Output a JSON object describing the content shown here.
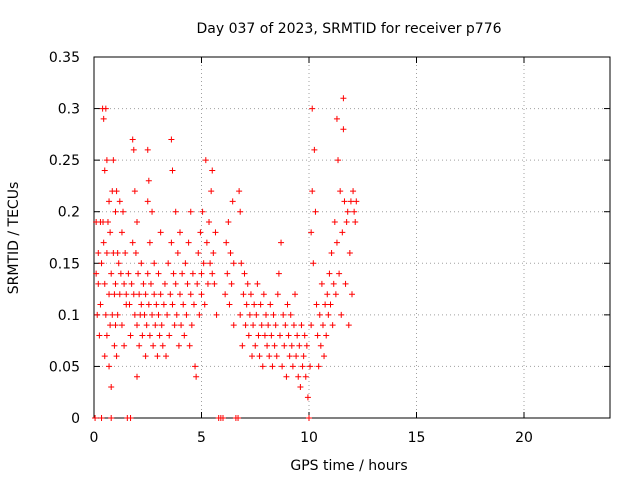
{
  "chart_data": {
    "type": "scatter",
    "title": "Day 037 of 2023, SRMTID for receiver p776",
    "xlabel": "GPS time / hours",
    "ylabel": "SRMTID / TECUs",
    "xlim": [
      0,
      24
    ],
    "ylim": [
      0,
      0.35
    ],
    "xticks": [
      0,
      5,
      10,
      15,
      20
    ],
    "xtick_labels": [
      "0",
      "5",
      "10",
      "15",
      "20"
    ],
    "yticks": [
      0,
      0.05,
      0.1,
      0.15,
      0.2,
      0.25,
      0.3,
      0.35
    ],
    "ytick_labels": [
      "0",
      "0.05",
      "0.1",
      "0.15",
      "0.2",
      "0.25",
      "0.3",
      "0.35"
    ],
    "grid": true,
    "marker": "+",
    "color": "#ff0000",
    "series": [
      {
        "name": "SRMTID",
        "points": [
          [
            0.05,
            0.0
          ],
          [
            0.1,
            0.19
          ],
          [
            0.1,
            0.14
          ],
          [
            0.15,
            0.1
          ],
          [
            0.2,
            0.16
          ],
          [
            0.2,
            0.13
          ],
          [
            0.25,
            0.08
          ],
          [
            0.3,
            0.19
          ],
          [
            0.3,
            0.11
          ],
          [
            0.35,
            0.15
          ],
          [
            0.35,
            0.0
          ],
          [
            0.4,
            0.3
          ],
          [
            0.42,
            0.19
          ],
          [
            0.45,
            0.29
          ],
          [
            0.45,
            0.17
          ],
          [
            0.5,
            0.06
          ],
          [
            0.5,
            0.24
          ],
          [
            0.5,
            0.13
          ],
          [
            0.55,
            0.3
          ],
          [
            0.55,
            0.1
          ],
          [
            0.6,
            0.25
          ],
          [
            0.6,
            0.16
          ],
          [
            0.6,
            0.08
          ],
          [
            0.65,
            0.19
          ],
          [
            0.7,
            0.21
          ],
          [
            0.7,
            0.12
          ],
          [
            0.7,
            0.05
          ],
          [
            0.75,
            0.18
          ],
          [
            0.75,
            0.09
          ],
          [
            0.8,
            0.03
          ],
          [
            0.8,
            0.14
          ],
          [
            0.8,
            0.0
          ],
          [
            0.85,
            0.22
          ],
          [
            0.85,
            0.1
          ],
          [
            0.9,
            0.25
          ],
          [
            0.9,
            0.16
          ],
          [
            0.95,
            0.12
          ],
          [
            0.95,
            0.07
          ],
          [
            1.0,
            0.2
          ],
          [
            1.0,
            0.13
          ],
          [
            1.0,
            0.09
          ],
          [
            1.05,
            0.22
          ],
          [
            1.05,
            0.06
          ],
          [
            1.1,
            0.16
          ],
          [
            1.1,
            0.1
          ],
          [
            1.15,
            0.15
          ],
          [
            1.2,
            0.21
          ],
          [
            1.2,
            0.12
          ],
          [
            1.25,
            0.14
          ],
          [
            1.3,
            0.18
          ],
          [
            1.3,
            0.09
          ],
          [
            1.35,
            0.2
          ],
          [
            1.4,
            0.13
          ],
          [
            1.4,
            0.07
          ],
          [
            1.45,
            0.16
          ],
          [
            1.5,
            0.11
          ],
          [
            1.5,
            0.12
          ],
          [
            1.55,
            0.0
          ],
          [
            1.6,
            0.14
          ],
          [
            1.65,
            0.11
          ],
          [
            1.7,
            0.08
          ],
          [
            1.7,
            0.0
          ],
          [
            1.75,
            0.13
          ],
          [
            1.8,
            0.27
          ],
          [
            1.8,
            0.17
          ],
          [
            1.85,
            0.26
          ],
          [
            1.85,
            0.12
          ],
          [
            1.9,
            0.22
          ],
          [
            1.9,
            0.1
          ],
          [
            1.95,
            0.16
          ],
          [
            2.0,
            0.19
          ],
          [
            2.0,
            0.09
          ],
          [
            2.0,
            0.04
          ],
          [
            2.05,
            0.14
          ],
          [
            2.1,
            0.12
          ],
          [
            2.1,
            0.07
          ],
          [
            2.15,
            0.1
          ],
          [
            2.2,
            0.15
          ],
          [
            2.2,
            0.11
          ],
          [
            2.25,
            0.08
          ],
          [
            2.3,
            0.13
          ],
          [
            2.35,
            0.1
          ],
          [
            2.4,
            0.06
          ],
          [
            2.4,
            0.12
          ],
          [
            2.45,
            0.09
          ],
          [
            2.5,
            0.26
          ],
          [
            2.5,
            0.21
          ],
          [
            2.5,
            0.14
          ],
          [
            2.55,
            0.23
          ],
          [
            2.55,
            0.11
          ],
          [
            2.6,
            0.17
          ],
          [
            2.6,
            0.08
          ],
          [
            2.65,
            0.13
          ],
          [
            2.7,
            0.2
          ],
          [
            2.7,
            0.1
          ],
          [
            2.75,
            0.07
          ],
          [
            2.8,
            0.15
          ],
          [
            2.8,
            0.12
          ],
          [
            2.85,
            0.09
          ],
          [
            2.9,
            0.11
          ],
          [
            2.95,
            0.06
          ],
          [
            3.0,
            0.14
          ],
          [
            3.0,
            0.1
          ],
          [
            3.05,
            0.08
          ],
          [
            3.1,
            0.18
          ],
          [
            3.1,
            0.12
          ],
          [
            3.15,
            0.09
          ],
          [
            3.2,
            0.07
          ],
          [
            3.25,
            0.11
          ],
          [
            3.3,
            0.13
          ],
          [
            3.35,
            0.06
          ],
          [
            3.4,
            0.1
          ],
          [
            3.45,
            0.15
          ],
          [
            3.5,
            0.08
          ],
          [
            3.55,
            0.12
          ],
          [
            3.6,
            0.27
          ],
          [
            3.6,
            0.17
          ],
          [
            3.65,
            0.24
          ],
          [
            3.65,
            0.11
          ],
          [
            3.7,
            0.14
          ],
          [
            3.75,
            0.09
          ],
          [
            3.8,
            0.2
          ],
          [
            3.8,
            0.13
          ],
          [
            3.85,
            0.1
          ],
          [
            3.9,
            0.16
          ],
          [
            3.95,
            0.07
          ],
          [
            4.0,
            0.12
          ],
          [
            4.0,
            0.18
          ],
          [
            4.05,
            0.09
          ],
          [
            4.1,
            0.14
          ],
          [
            4.15,
            0.11
          ],
          [
            4.2,
            0.08
          ],
          [
            4.25,
            0.15
          ],
          [
            4.3,
            0.1
          ],
          [
            4.35,
            0.13
          ],
          [
            4.4,
            0.17
          ],
          [
            4.45,
            0.07
          ],
          [
            4.5,
            0.12
          ],
          [
            4.5,
            0.2
          ],
          [
            4.55,
            0.09
          ],
          [
            4.6,
            0.14
          ],
          [
            4.65,
            0.11
          ],
          [
            4.7,
            0.05
          ],
          [
            4.75,
            0.04
          ],
          [
            4.8,
            0.13
          ],
          [
            4.85,
            0.16
          ],
          [
            4.9,
            0.1
          ],
          [
            4.95,
            0.18
          ],
          [
            5.0,
            0.14
          ],
          [
            5.0,
            0.12
          ],
          [
            5.05,
            0.2
          ],
          [
            5.1,
            0.15
          ],
          [
            5.15,
            0.11
          ],
          [
            5.2,
            0.25
          ],
          [
            5.25,
            0.17
          ],
          [
            5.3,
            0.13
          ],
          [
            5.35,
            0.19
          ],
          [
            5.4,
            0.15
          ],
          [
            5.45,
            0.22
          ],
          [
            5.5,
            0.24
          ],
          [
            5.5,
            0.14
          ],
          [
            5.55,
            0.16
          ],
          [
            5.6,
            0.13
          ],
          [
            5.65,
            0.18
          ],
          [
            5.7,
            0.1
          ],
          [
            5.8,
            0.0
          ],
          [
            5.9,
            0.0
          ],
          [
            6.0,
            0.0
          ],
          [
            6.1,
            0.12
          ],
          [
            6.15,
            0.17
          ],
          [
            6.2,
            0.14
          ],
          [
            6.25,
            0.19
          ],
          [
            6.3,
            0.11
          ],
          [
            6.35,
            0.16
          ],
          [
            6.4,
            0.13
          ],
          [
            6.45,
            0.21
          ],
          [
            6.5,
            0.09
          ],
          [
            6.5,
            0.15
          ],
          [
            6.6,
            0.0
          ],
          [
            6.7,
            0.0
          ],
          [
            6.75,
            0.22
          ],
          [
            6.8,
            0.2
          ],
          [
            6.8,
            0.1
          ],
          [
            6.85,
            0.15
          ],
          [
            6.9,
            0.07
          ],
          [
            6.95,
            0.12
          ],
          [
            7.0,
            0.14
          ],
          [
            7.05,
            0.09
          ],
          [
            7.1,
            0.11
          ],
          [
            7.15,
            0.13
          ],
          [
            7.2,
            0.08
          ],
          [
            7.25,
            0.1
          ],
          [
            7.3,
            0.12
          ],
          [
            7.35,
            0.06
          ],
          [
            7.4,
            0.09
          ],
          [
            7.45,
            0.11
          ],
          [
            7.5,
            0.07
          ],
          [
            7.55,
            0.1
          ],
          [
            7.6,
            0.13
          ],
          [
            7.65,
            0.08
          ],
          [
            7.7,
            0.06
          ],
          [
            7.75,
            0.11
          ],
          [
            7.8,
            0.09
          ],
          [
            7.85,
            0.05
          ],
          [
            7.9,
            0.12
          ],
          [
            7.95,
            0.08
          ],
          [
            8.0,
            0.1
          ],
          [
            8.05,
            0.07
          ],
          [
            8.1,
            0.09
          ],
          [
            8.15,
            0.06
          ],
          [
            8.2,
            0.11
          ],
          [
            8.25,
            0.08
          ],
          [
            8.3,
            0.05
          ],
          [
            8.35,
            0.1
          ],
          [
            8.4,
            0.07
          ],
          [
            8.45,
            0.09
          ],
          [
            8.5,
            0.06
          ],
          [
            8.55,
            0.12
          ],
          [
            8.6,
            0.14
          ],
          [
            8.65,
            0.08
          ],
          [
            8.7,
            0.17
          ],
          [
            8.75,
            0.05
          ],
          [
            8.8,
            0.1
          ],
          [
            8.85,
            0.07
          ],
          [
            8.9,
            0.09
          ],
          [
            8.95,
            0.04
          ],
          [
            9.0,
            0.11
          ],
          [
            9.05,
            0.08
          ],
          [
            9.1,
            0.06
          ],
          [
            9.15,
            0.1
          ],
          [
            9.2,
            0.07
          ],
          [
            9.25,
            0.05
          ],
          [
            9.3,
            0.09
          ],
          [
            9.35,
            0.12
          ],
          [
            9.4,
            0.06
          ],
          [
            9.45,
            0.08
          ],
          [
            9.5,
            0.04
          ],
          [
            9.55,
            0.07
          ],
          [
            9.6,
            0.03
          ],
          [
            9.65,
            0.09
          ],
          [
            9.7,
            0.05
          ],
          [
            9.75,
            0.06
          ],
          [
            9.8,
            0.08
          ],
          [
            9.85,
            0.04
          ],
          [
            9.9,
            0.07
          ],
          [
            9.95,
            0.02
          ],
          [
            10.0,
            0.0
          ],
          [
            10.05,
            0.05
          ],
          [
            10.1,
            0.09
          ],
          [
            10.1,
            0.18
          ],
          [
            10.15,
            0.3
          ],
          [
            10.15,
            0.22
          ],
          [
            10.2,
            0.15
          ],
          [
            10.25,
            0.26
          ],
          [
            10.3,
            0.2
          ],
          [
            10.35,
            0.11
          ],
          [
            10.4,
            0.08
          ],
          [
            10.45,
            0.05
          ],
          [
            10.5,
            0.1
          ],
          [
            10.55,
            0.07
          ],
          [
            10.6,
            0.13
          ],
          [
            10.65,
            0.09
          ],
          [
            10.7,
            0.06
          ],
          [
            10.75,
            0.11
          ],
          [
            10.8,
            0.08
          ],
          [
            10.85,
            0.12
          ],
          [
            10.9,
            0.1
          ],
          [
            10.95,
            0.14
          ],
          [
            11.0,
            0.11
          ],
          [
            11.05,
            0.16
          ],
          [
            11.1,
            0.09
          ],
          [
            11.15,
            0.13
          ],
          [
            11.2,
            0.19
          ],
          [
            11.25,
            0.12
          ],
          [
            11.3,
            0.29
          ],
          [
            11.3,
            0.17
          ],
          [
            11.35,
            0.25
          ],
          [
            11.4,
            0.14
          ],
          [
            11.45,
            0.22
          ],
          [
            11.5,
            0.1
          ],
          [
            11.55,
            0.18
          ],
          [
            11.6,
            0.31
          ],
          [
            11.6,
            0.28
          ],
          [
            11.65,
            0.21
          ],
          [
            11.7,
            0.13
          ],
          [
            11.75,
            0.19
          ],
          [
            11.8,
            0.2
          ],
          [
            11.85,
            0.09
          ],
          [
            11.9,
            0.16
          ],
          [
            11.95,
            0.21
          ],
          [
            12.0,
            0.12
          ],
          [
            12.05,
            0.22
          ],
          [
            12.1,
            0.2
          ],
          [
            12.15,
            0.19
          ],
          [
            12.2,
            0.21
          ]
        ]
      }
    ]
  }
}
